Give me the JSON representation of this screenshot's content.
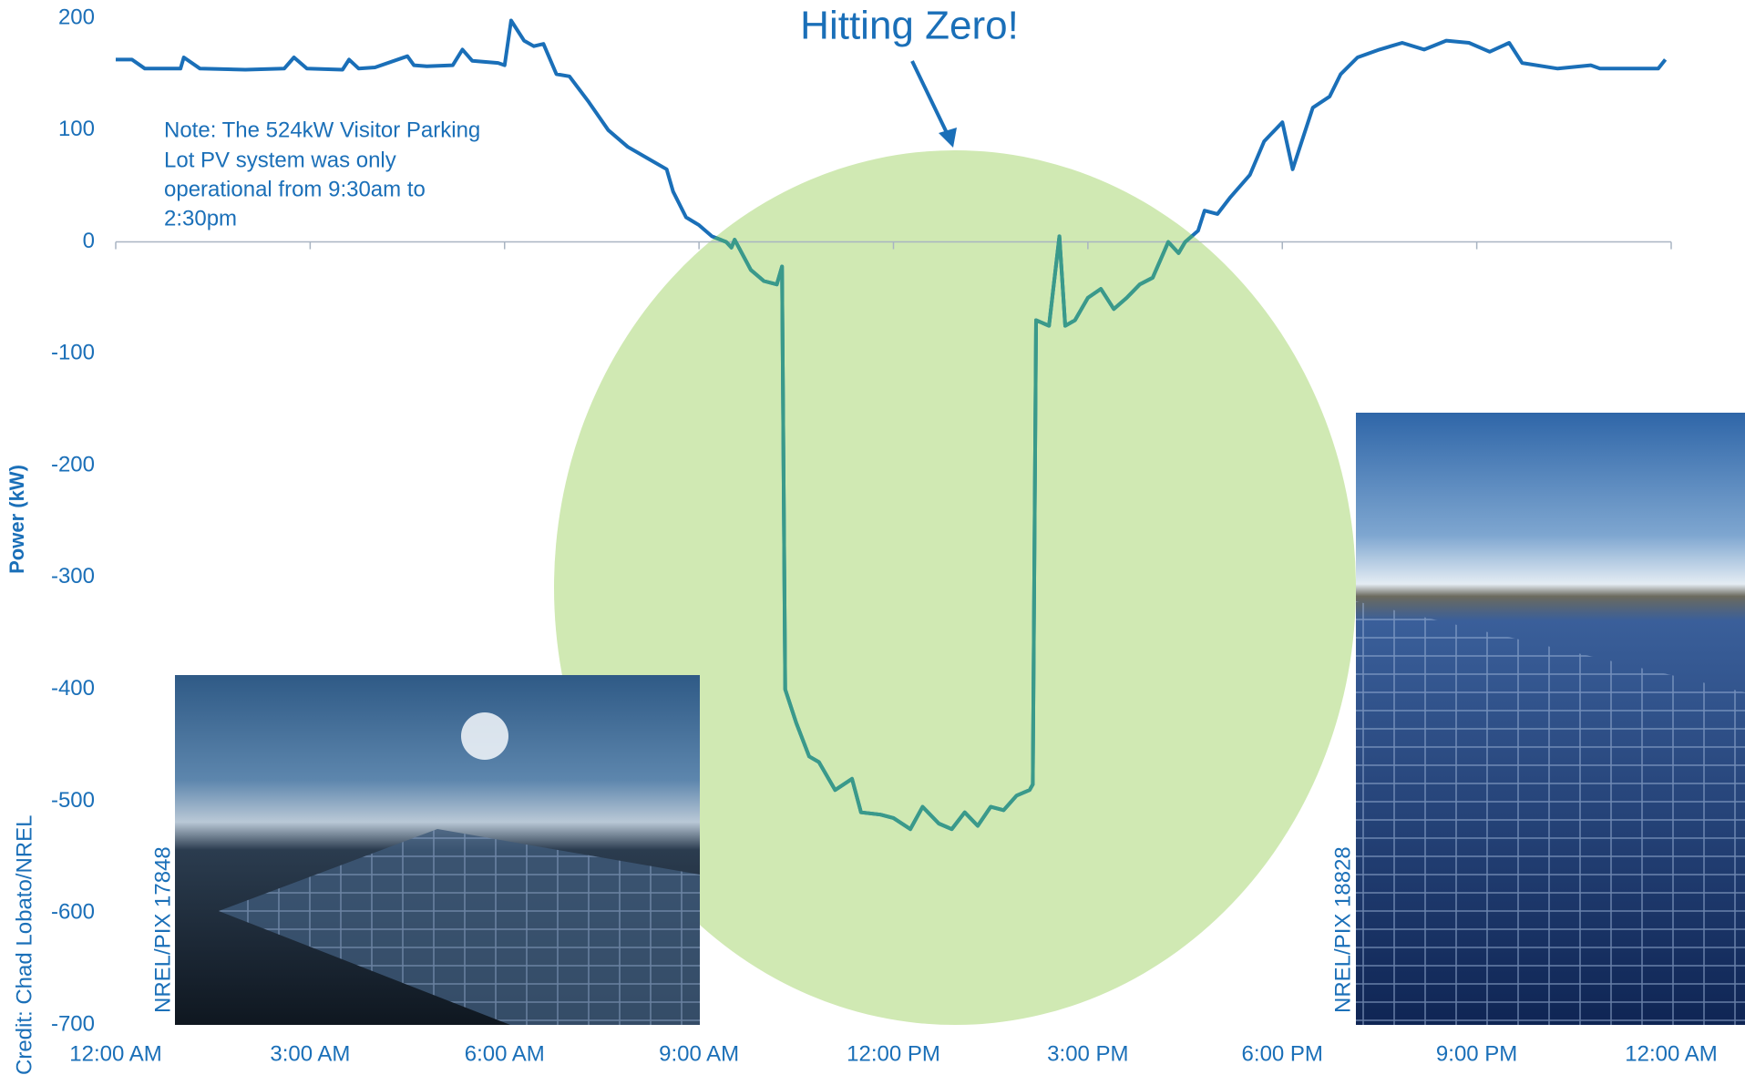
{
  "chart_data": {
    "type": "line",
    "y_label": "Power (kW)",
    "callout": "Hitting Zero!",
    "note": [
      "Note: The 524kW Visitor Parking",
      "Lot PV system was only",
      "operational from 9:30am to",
      "2:30pm"
    ],
    "credit": "Credit: Chad Lobato/NREL",
    "photo_credits": [
      "NREL/PIX 17848",
      "NREL/PIX 18828"
    ],
    "color": "#1a6fb8",
    "highlight_color": "#3a9a8a",
    "x": [
      0,
      0.25,
      0.45,
      1,
      1.05,
      1.3,
      2,
      2.6,
      2.75,
      2.95,
      3.5,
      3.6,
      3.75,
      4,
      4.5,
      4.6,
      4.8,
      5.2,
      5.35,
      5.5,
      5.9,
      6,
      6.1,
      6.3,
      6.45,
      6.6,
      6.8,
      7,
      7.3,
      7.6,
      7.9,
      8.2,
      8.5,
      8.6,
      8.8,
      9,
      9.2,
      9.42,
      9.5,
      9.55,
      9.8,
      10,
      10.2,
      10.28,
      10.33,
      10.5,
      10.7,
      10.85,
      11.1,
      11.36,
      11.5,
      11.8,
      12,
      12.26,
      12.45,
      12.7,
      12.9,
      13.1,
      13.3,
      13.5,
      13.7,
      13.9,
      14.1,
      14.15,
      14.2,
      14.4,
      14.56,
      14.65,
      14.8,
      15,
      15.2,
      15.4,
      15.6,
      15.8,
      16,
      16.24,
      16.4,
      16.5,
      16.7,
      16.8,
      17,
      17.2,
      17.5,
      17.72,
      18,
      18.16,
      18.3,
      18.47,
      18.73,
      18.9,
      19.16,
      19.5,
      19.85,
      20.19,
      20.53,
      20.88,
      21.2,
      21.5,
      21.7,
      22.25,
      22.76,
      22.9,
      23.3,
      23.8,
      23.91
    ],
    "values": [
      163,
      163,
      155,
      155,
      165,
      155,
      154,
      155,
      165,
      155,
      154,
      163,
      155,
      156,
      166,
      158,
      157,
      158,
      172,
      162,
      160,
      158,
      198,
      180,
      175,
      177,
      150,
      148,
      125,
      100,
      85,
      75,
      65,
      45,
      22,
      15,
      5,
      0,
      -5,
      2,
      -25,
      -35,
      -38,
      -22,
      -400,
      -430,
      -460,
      -465,
      -490,
      -480,
      -510,
      -512,
      -515,
      -525,
      -505,
      -520,
      -525,
      -510,
      -522,
      -505,
      -508,
      -495,
      -490,
      -485,
      -70,
      -75,
      5,
      -75,
      -70,
      -50,
      -42,
      -60,
      -50,
      -38,
      -32,
      0,
      -10,
      0,
      10,
      28,
      25,
      40,
      60,
      90,
      107,
      65,
      90,
      120,
      130,
      150,
      165,
      172,
      178,
      172,
      180,
      178,
      170,
      178,
      160,
      155,
      158,
      155,
      155,
      155,
      163
    ],
    "xlim": [
      0,
      24
    ],
    "xticks": [
      {
        "value": 0,
        "label": "12:00 AM"
      },
      {
        "value": 3,
        "label": "3:00 AM"
      },
      {
        "value": 6,
        "label": "6:00 AM"
      },
      {
        "value": 9,
        "label": "9:00 AM"
      },
      {
        "value": 12,
        "label": "12:00 PM"
      },
      {
        "value": 15,
        "label": "3:00 PM"
      },
      {
        "value": 18,
        "label": "6:00 PM"
      },
      {
        "value": 21,
        "label": "9:00 PM"
      },
      {
        "value": 24,
        "label": "12:00 AM"
      }
    ],
    "ylim": [
      -700,
      200
    ],
    "yticks": [
      200,
      100,
      0,
      -100,
      -200,
      -300,
      -400,
      -500,
      -600,
      -700
    ]
  }
}
